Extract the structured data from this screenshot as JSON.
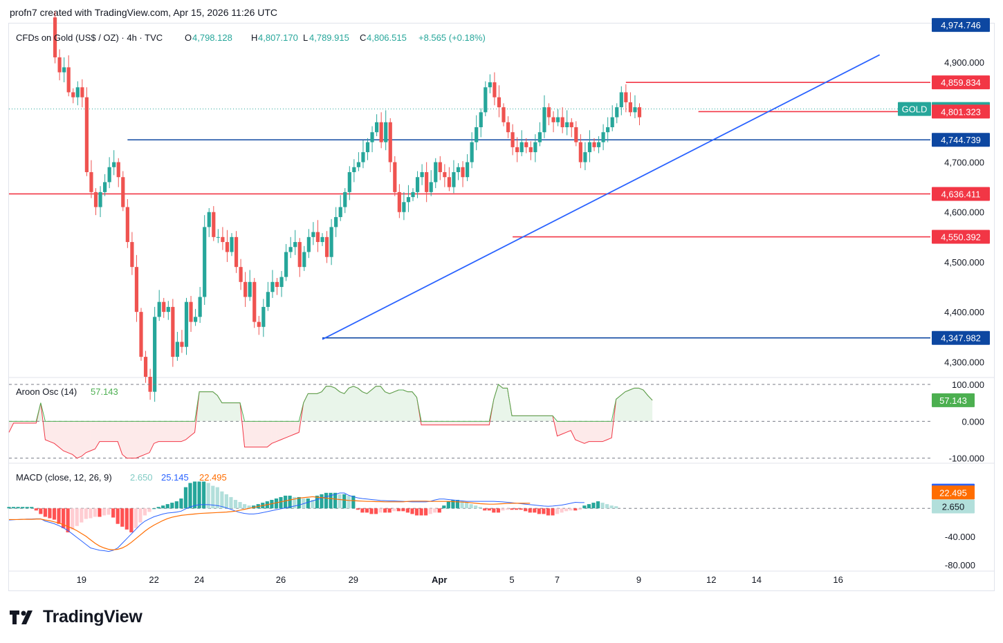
{
  "attribution": "profn7 created with TradingView.com, Apr 15, 2026 11:26 UTC",
  "brand": {
    "logo_text": "TradingView"
  },
  "legend": {
    "symbol": "CFDs on Gold (US$ / OZ) · 4h · TVC",
    "open_label": "O",
    "open": "4,798.128",
    "high_label": "H",
    "high": "4,807.170",
    "low_label": "L",
    "low": "4,789.915",
    "close_label": "C",
    "close": "4,806.515",
    "change": "+8.565 (+0.18%)"
  },
  "colors": {
    "up": "#26a69a",
    "down": "#ef5350",
    "blue_line": "#0d47a1",
    "trend_line": "#2962ff",
    "red_line": "#f23645",
    "aroon": "#4caf50",
    "macd": "#2962ff",
    "signal": "#ff6d00",
    "hist_up_strong": "#26a69a",
    "hist_up_weak": "#b2dfdb",
    "hist_down_strong": "#ff5252",
    "hist_down_weak": "#ffcdd2"
  },
  "chart_data": [
    {
      "type": "candlestick",
      "title": "CFDs on Gold (US$ / OZ) · 4h · TVC",
      "y_ticks": [
        "4,300.000",
        "4,400.000",
        "4,500.000",
        "4,600.000",
        "4,700.000",
        "4,800.000",
        "4,900.000"
      ],
      "y_tick_values": [
        4300,
        4400,
        4500,
        4600,
        4700,
        4800,
        4900
      ],
      "ylim": [
        4270,
        4975
      ],
      "x_labels": [
        {
          "label": "19",
          "bar": 16
        },
        {
          "label": "22",
          "bar": 32
        },
        {
          "label": "24",
          "bar": 42
        },
        {
          "label": "26",
          "bar": 60
        },
        {
          "label": "29",
          "bar": 76
        },
        {
          "label": "Apr",
          "bar": 95
        },
        {
          "label": "5",
          "bar": 111
        },
        {
          "label": "7",
          "bar": 121
        },
        {
          "label": "9",
          "bar": 139
        },
        {
          "label": "12",
          "bar": 155
        },
        {
          "label": "14",
          "bar": 165
        },
        {
          "label": "16",
          "bar": 183
        }
      ],
      "closes": [
        4990,
        4910,
        4880,
        4890,
        4840,
        4830,
        4850,
        4830,
        4680,
        4640,
        4610,
        4640,
        4660,
        4690,
        4700,
        4670,
        4610,
        4540,
        4490,
        4400,
        4310,
        4270,
        4240,
        4390,
        4420,
        4400,
        4410,
        4310,
        4340,
        4330,
        4420,
        4380,
        4390,
        4430,
        4570,
        4600,
        4550,
        4550,
        4540,
        4520,
        4550,
        4490,
        4460,
        4430,
        4460,
        4380,
        4370,
        4410,
        4440,
        4460,
        4450,
        4470,
        4520,
        4530,
        4540,
        4490,
        4520,
        4550,
        4560,
        4540,
        4550,
        4510,
        4570,
        4590,
        4610,
        4640,
        4680,
        4690,
        4700,
        4720,
        4740,
        4760,
        4780,
        4740,
        4780,
        4700,
        4640,
        4600,
        4620,
        4630,
        4640,
        4670,
        4680,
        4640,
        4660,
        4700,
        4680,
        4670,
        4650,
        4680,
        4690,
        4670,
        4700,
        4740,
        4770,
        4800,
        4850,
        4860,
        4830,
        4810,
        4780,
        4760,
        4730,
        4720,
        4740,
        4730,
        4720,
        4740,
        4760,
        4810,
        4790,
        4780,
        4790,
        4770,
        4780,
        4770,
        4740,
        4700,
        4720,
        4740,
        4730,
        4740,
        4760,
        4770,
        4790,
        4810,
        4840,
        4820,
        4800,
        4810,
        4790
      ],
      "levels": [
        {
          "label": "4,974.746",
          "price": 4974.746,
          "style": "tag-blue"
        },
        {
          "label": "4,859.834",
          "price": 4859.834,
          "style": "red-line"
        },
        {
          "label": "4,806.515",
          "price": 4806.515,
          "style": "current",
          "tag": "GOLD"
        },
        {
          "label": "4,801.323",
          "price": 4801.323,
          "style": "red-line"
        },
        {
          "label": "4,744.739",
          "price": 4744.739,
          "style": "blue-line"
        },
        {
          "label": "4,636.411",
          "price": 4636.411,
          "style": "red-line"
        },
        {
          "label": "4,550.392",
          "price": 4550.392,
          "style": "red-line"
        },
        {
          "label": "4,347.982",
          "price": 4347.982,
          "style": "blue-line"
        }
      ],
      "trendline": {
        "from": {
          "bar": 60,
          "price": 4345
        },
        "to": {
          "bar": 183,
          "price": 4915
        }
      }
    },
    {
      "type": "line",
      "title": "Aroon Osc (14)",
      "value_label": "57.143",
      "y_ticks": [
        "100.000",
        "0.000",
        "-100.000"
      ],
      "y_tick_values": [
        100,
        0,
        -100
      ],
      "ylim": [
        -110,
        115
      ],
      "values": [
        -30,
        -5,
        -5,
        -5,
        -5,
        -5,
        -5,
        50,
        -50,
        -55,
        -60,
        -70,
        -80,
        -85,
        -90,
        -100,
        -95,
        -85,
        -80,
        -75,
        -55,
        -55,
        -55,
        -55,
        -55,
        -90,
        -100,
        -100,
        -100,
        -95,
        -90,
        -85,
        -60,
        -55,
        -55,
        -55,
        -55,
        -55,
        -55,
        -50,
        -40,
        -30,
        80,
        80,
        80,
        80,
        70,
        50,
        50,
        50,
        50,
        50,
        -70,
        -70,
        -70,
        -70,
        -70,
        -70,
        -60,
        -55,
        -50,
        -45,
        -40,
        -35,
        -30,
        50,
        75,
        75,
        75,
        80,
        95,
        95,
        90,
        80,
        75,
        90,
        95,
        90,
        80,
        75,
        85,
        95,
        95,
        80,
        75,
        80,
        85,
        85,
        80,
        80,
        65,
        -10,
        -10,
        -10,
        -10,
        -10,
        -10,
        -10,
        -10,
        -10,
        -10,
        -10,
        -10,
        -10,
        -10,
        -10,
        -10,
        60,
        100,
        90,
        90,
        15,
        15,
        15,
        15,
        15,
        15,
        15,
        15,
        15,
        15,
        -40,
        -35,
        -30,
        -25,
        -50,
        -55,
        -60,
        -55,
        -55,
        -55,
        -55,
        -50,
        -45,
        60,
        70,
        80,
        85,
        90,
        90,
        85,
        70,
        57
      ]
    },
    {
      "type": "bar+line",
      "title": "MACD (close, 12, 26, 9)",
      "legend": [
        {
          "name": "histogram",
          "value": "2.650"
        },
        {
          "name": "macd",
          "value": "25.145"
        },
        {
          "name": "signal",
          "value": "22.495"
        }
      ],
      "y_ticks": [
        "-40.000",
        "-80.000"
      ],
      "y_tick_values": [
        -40,
        -80
      ],
      "ylim": [
        -85,
        62
      ],
      "histogram": [
        2,
        2,
        2,
        2,
        2,
        2,
        -3,
        -8,
        -12,
        -14,
        -16,
        -22,
        -28,
        -34,
        -30,
        -25,
        -20,
        -15,
        -14,
        -12,
        -12,
        -10,
        -9,
        -13,
        -22,
        -26,
        -30,
        -34,
        -28,
        -20,
        -10,
        -5,
        0,
        2,
        4,
        6,
        8,
        10,
        14,
        30,
        36,
        38,
        38,
        38,
        36,
        32,
        30,
        24,
        20,
        16,
        12,
        9,
        6,
        4,
        4,
        6,
        8,
        10,
        12,
        14,
        16,
        18,
        18,
        16,
        16,
        14,
        14,
        12,
        18,
        20,
        22,
        22,
        22,
        20,
        20,
        18,
        18,
        -2,
        -6,
        -6,
        -8,
        -8,
        -6,
        -6,
        -6,
        -4,
        -4,
        -4,
        -6,
        -8,
        -10,
        -10,
        -10,
        -8,
        -6,
        -6,
        4,
        10,
        12,
        12,
        10,
        8,
        6,
        4,
        2,
        -3,
        -3,
        -6,
        -6,
        -3,
        -2,
        -2,
        -2,
        -2,
        -4,
        -6,
        -6,
        -8,
        -8,
        -10,
        -10,
        -8,
        -6,
        -4,
        -3,
        -3,
        -2,
        4,
        6,
        8,
        10,
        8,
        6,
        4,
        3
      ],
      "macd_line": [
        -50,
        -49,
        -48,
        -47,
        -46,
        -46,
        -45,
        -45,
        -55,
        -60,
        -66,
        -74,
        -84,
        -95,
        -110,
        -125,
        -140,
        -155,
        -170,
        -175,
        -180,
        -182,
        -185,
        -180,
        -170,
        -150,
        -130,
        -110,
        -90,
        -70,
        -55,
        -45,
        -36,
        -30,
        -24,
        -20,
        -18,
        -16,
        -12,
        -2,
        6,
        12,
        16,
        16,
        16,
        14,
        12,
        8,
        2,
        -4,
        -12,
        -18,
        -22,
        -24,
        -24,
        -22,
        -18,
        -14,
        -10,
        -6,
        -2,
        2,
        6,
        10,
        14,
        20,
        26,
        32,
        38,
        44,
        50,
        55,
        60,
        66,
        66,
        56,
        50,
        45,
        42,
        40,
        38,
        36,
        34,
        33,
        32,
        32,
        31,
        30,
        29,
        28,
        28,
        28,
        28,
        30,
        36,
        40,
        40,
        38,
        36,
        34,
        32,
        30,
        30,
        30,
        30,
        30,
        30,
        30,
        29,
        28,
        26,
        24,
        22,
        20,
        18,
        16,
        14,
        12,
        10,
        9,
        10,
        12,
        14,
        18,
        22,
        26,
        25,
        25
      ],
      "signal_line": [
        -48,
        -48,
        -48,
        -47,
        -47,
        -47,
        -46,
        -46,
        -50,
        -53,
        -58,
        -63,
        -70,
        -78,
        -86,
        -96,
        -108,
        -120,
        -135,
        -150,
        -162,
        -170,
        -176,
        -178,
        -176,
        -170,
        -160,
        -146,
        -130,
        -114,
        -98,
        -84,
        -72,
        -62,
        -52,
        -44,
        -38,
        -34,
        -30,
        -28,
        -26,
        -24,
        -22,
        -21,
        -20,
        -19,
        -18,
        -17,
        -16,
        -14,
        -12,
        -8,
        -4,
        0,
        4,
        8,
        12,
        16,
        20,
        24,
        28,
        32,
        36,
        40,
        44,
        46,
        48,
        50,
        48,
        46,
        44,
        42,
        40,
        38,
        36,
        34,
        33,
        32,
        31,
        30,
        30,
        29,
        29,
        28,
        28,
        28,
        28,
        28,
        30,
        31,
        31,
        31,
        31,
        30,
        30,
        30,
        30,
        30,
        29,
        28,
        27,
        26,
        24,
        22,
        20,
        19,
        18,
        18,
        19,
        20,
        21,
        22,
        22,
        22,
        22,
        22
      ]
    }
  ]
}
